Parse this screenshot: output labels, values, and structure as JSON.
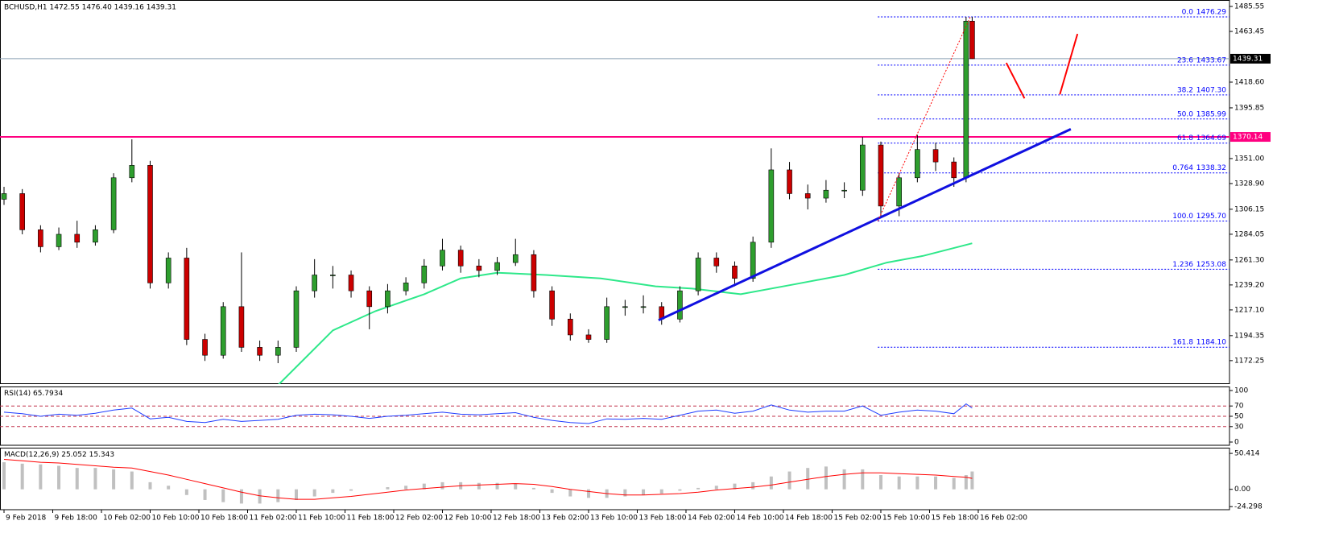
{
  "chart_data": [
    {
      "type": "candlestick",
      "header": "BCHUSD,H1  1472.55 1476.40 1439.16 1439.31",
      "x": [
        0,
        3,
        6,
        9,
        12,
        15,
        18,
        21,
        24,
        27,
        30,
        33,
        36,
        39,
        42,
        45,
        48,
        51,
        54,
        57,
        60,
        63,
        66,
        69,
        72,
        75,
        78,
        81,
        84,
        87,
        90,
        93,
        96,
        99,
        102,
        105,
        108,
        111,
        114,
        117,
        120,
        123,
        126,
        129,
        132,
        135,
        138,
        141,
        144,
        147,
        150,
        153,
        156,
        158,
        159
      ],
      "open": [
        1315,
        1320,
        1288,
        1273,
        1284,
        1277,
        1288,
        1334,
        1345,
        1241,
        1263,
        1191,
        1177,
        1220,
        1184,
        1177,
        1184,
        1234,
        1248,
        1248,
        1234,
        1220,
        1234,
        1241,
        1256,
        1270,
        1256,
        1252,
        1259,
        1266,
        1234,
        1209,
        1195,
        1191,
        1220,
        1220,
        1220,
        1209,
        1234,
        1263,
        1256,
        1245,
        1277,
        1341,
        1320,
        1316,
        1323,
        1323,
        1363,
        1309,
        1334,
        1359,
        1348,
        1334,
        1472.55
      ],
      "high": [
        1326,
        1324,
        1292,
        1290,
        1296,
        1292,
        1338,
        1368,
        1349,
        1268,
        1272,
        1196,
        1224,
        1268,
        1190,
        1190,
        1238,
        1262,
        1256,
        1252,
        1238,
        1240,
        1246,
        1262,
        1280,
        1274,
        1262,
        1264,
        1280,
        1270,
        1238,
        1214,
        1200,
        1228,
        1226,
        1230,
        1224,
        1238,
        1268,
        1268,
        1260,
        1282,
        1360,
        1348,
        1328,
        1332,
        1330,
        1370,
        1366,
        1338,
        1372,
        1365,
        1352,
        1476.29,
        1476.4
      ],
      "low": [
        1310,
        1284,
        1268,
        1270,
        1272,
        1274,
        1285,
        1330,
        1236,
        1236,
        1186,
        1172,
        1174,
        1180,
        1172,
        1170,
        1180,
        1228,
        1236,
        1228,
        1200,
        1214,
        1230,
        1236,
        1252,
        1250,
        1246,
        1248,
        1256,
        1228,
        1203,
        1190,
        1188,
        1188,
        1212,
        1214,
        1204,
        1206,
        1230,
        1250,
        1238,
        1242,
        1272,
        1315,
        1306,
        1312,
        1316,
        1318,
        1300,
        1300,
        1330,
        1340,
        1326,
        1330,
        1439.16
      ],
      "close": [
        1320,
        1288,
        1273,
        1284,
        1277,
        1288,
        1334,
        1345,
        1241,
        1263,
        1191,
        1177,
        1220,
        1184,
        1177,
        1184,
        1234,
        1248,
        1248,
        1234,
        1220,
        1234,
        1241,
        1256,
        1270,
        1256,
        1252,
        1259,
        1266,
        1234,
        1209,
        1195,
        1191,
        1220,
        1220,
        1220,
        1209,
        1234,
        1263,
        1256,
        1245,
        1277,
        1341,
        1320,
        1316,
        1323,
        1323,
        1363,
        1309,
        1334,
        1359,
        1348,
        1334,
        1472.55,
        1439.31
      ],
      "up_color": "#2e9e2e",
      "down_color": "#cc0000",
      "xlim": [
        -0.66,
        201.26
      ],
      "ylim": [
        1151.5,
        1491.26
      ],
      "yticks": [
        1485.55,
        1463.45,
        {
          "value": 1418.6,
          "label": "1418.60"
        },
        1395.85,
        {
          "value": 1351,
          "label": "1351.00"
        },
        {
          "value": 1328.9,
          "label": "1328.90"
        },
        1306.15,
        1284.05,
        {
          "value": 1261.3,
          "label": "1261.30"
        },
        {
          "value": 1239.2,
          "label": "1239.20"
        },
        {
          "value": 1217.1,
          "label": "1217.10"
        },
        1194.35,
        1172.25
      ],
      "xticks": [
        {
          "value": 0,
          "label": "9 Feb 2018"
        },
        {
          "value": 8,
          "label": "9 Feb 18:00"
        },
        {
          "value": 16,
          "label": "10 Feb 02:00"
        },
        {
          "value": 24,
          "label": "10 Feb 10:00"
        },
        {
          "value": 32,
          "label": "10 Feb 18:00"
        },
        {
          "value": 40,
          "label": "11 Feb 02:00"
        },
        {
          "value": 48,
          "label": "11 Feb 10:00"
        },
        {
          "value": 56,
          "label": "11 Feb 18:00"
        },
        {
          "value": 64,
          "label": "12 Feb 02:00"
        },
        {
          "value": 72,
          "label": "12 Feb 10:00"
        },
        {
          "value": 80,
          "label": "12 Feb 18:00"
        },
        {
          "value": 88,
          "label": "13 Feb 02:00"
        },
        {
          "value": 96,
          "label": "13 Feb 10:00"
        },
        {
          "value": 104,
          "label": "13 Feb 18:00"
        },
        {
          "value": 112,
          "label": "14 Feb 02:00"
        },
        {
          "value": 120,
          "label": "14 Feb 10:00"
        },
        {
          "value": 128,
          "label": "14 Feb 18:00"
        },
        {
          "value": 136,
          "label": "15 Feb 02:00"
        },
        {
          "value": 144,
          "label": "15 Feb 10:00"
        },
        {
          "value": 152,
          "label": "15 Feb 18:00"
        },
        {
          "value": 160,
          "label": "16 Feb 02:00"
        }
      ],
      "resistance": {
        "value": 1370.14,
        "color": "#ff0080"
      },
      "price_line_color": "#8ca0b4",
      "ma": {
        "color": "#2ee88a",
        "x": [
          44.9,
          54,
          61,
          69,
          75,
          81,
          89,
          98,
          107,
          113,
          121,
          130,
          138,
          145,
          151,
          159
        ],
        "values": [
          1150,
          1199,
          1216,
          1231,
          1245,
          1250,
          1248,
          1245,
          1238,
          1236,
          1231,
          1240,
          1248,
          1259,
          1265,
          1276
        ]
      },
      "fib": {
        "color": "#0000ff",
        "x_start": 143.5,
        "ratios": [
          "0.0",
          "23.6",
          "38.2",
          "50.0",
          "61.8",
          "0.764",
          "100.0",
          "1.236",
          "161.8"
        ],
        "prices": [
          1476.29,
          1433.67,
          1407.3,
          1385.99,
          1364.69,
          1338.32,
          1295.7,
          1253.08,
          1184.1
        ],
        "value_labels": [
          "1476.29",
          "1433.67",
          "1407.30",
          "1385.99",
          "1364.69",
          "1338.32",
          "1295.70",
          "1253.08",
          "1184.10"
        ]
      },
      "trendline": {
        "color": "#1010e0",
        "x": [
          107.5,
          175.2
        ],
        "y": [
          1208,
          1377
        ]
      },
      "fib_guide": {
        "color": "#ff0000",
        "x": [
          143.5,
          158.7
        ],
        "y": [
          1295.7,
          1476.29
        ]
      },
      "projections": {
        "color": "#ff0000",
        "lines": [
          {
            "x": [
              164.6,
              167.6
            ],
            "y": [
              1435.6,
              1404.2
            ]
          },
          {
            "x": [
              173.4,
              176.3
            ],
            "y": [
              1407.8,
              1461.3
            ]
          }
        ]
      }
    },
    {
      "type": "line",
      "title": "RSI(14)",
      "color": "#1e3cff",
      "values": [
        58,
        55,
        50,
        54,
        52,
        56,
        62,
        66,
        45,
        48,
        40,
        38,
        44,
        40,
        42,
        44,
        52,
        54,
        53,
        50,
        46,
        50,
        52,
        55,
        58,
        54,
        53,
        55,
        57,
        48,
        42,
        38,
        36,
        45,
        44,
        46,
        44,
        52,
        60,
        62,
        56,
        60,
        72,
        62,
        58,
        60,
        60,
        70,
        52,
        58,
        62,
        60,
        55,
        74,
        65.7934
      ],
      "ylim": [
        0,
        100
      ],
      "yticks": [
        0,
        30,
        50,
        70,
        100
      ],
      "level_color": "#c0304a"
    },
    {
      "type": "macd",
      "title": "MACD(12,26,9)",
      "histogram": {
        "color": "#c0c0c0",
        "values": [
          38,
          36,
          35,
          33,
          30,
          30,
          28,
          25,
          10,
          5,
          -8,
          -15,
          -18,
          -20,
          -20,
          -18,
          -15,
          -10,
          -5,
          -2,
          0,
          3,
          5,
          8,
          10,
          10,
          9,
          9,
          8,
          2,
          -5,
          -10,
          -12,
          -12,
          -10,
          -8,
          -6,
          -2,
          2,
          5,
          8,
          10,
          18,
          25,
          30,
          32,
          28,
          28,
          20,
          18,
          18,
          18,
          16,
          20,
          25.052
        ]
      },
      "signal": {
        "color": "#ff0000",
        "values": [
          42,
          40,
          38,
          37,
          35,
          33,
          31,
          30,
          25,
          20,
          14,
          8,
          2,
          -4,
          -9,
          -12,
          -14,
          -14,
          -12,
          -10,
          -7,
          -4,
          -1,
          1,
          3,
          5,
          6,
          7,
          8,
          7,
          4,
          0,
          -3,
          -6,
          -8,
          -8,
          -7,
          -6,
          -4,
          -1,
          1,
          3,
          6,
          10,
          14,
          18,
          21,
          23,
          23,
          22,
          21,
          20,
          18,
          17,
          15.343
        ]
      },
      "ylim": [
        -28.6,
        57.3
      ],
      "yticks": [
        50.414,
        {
          "value": 0,
          "label": "0.00"
        },
        -24.298
      ]
    }
  ]
}
